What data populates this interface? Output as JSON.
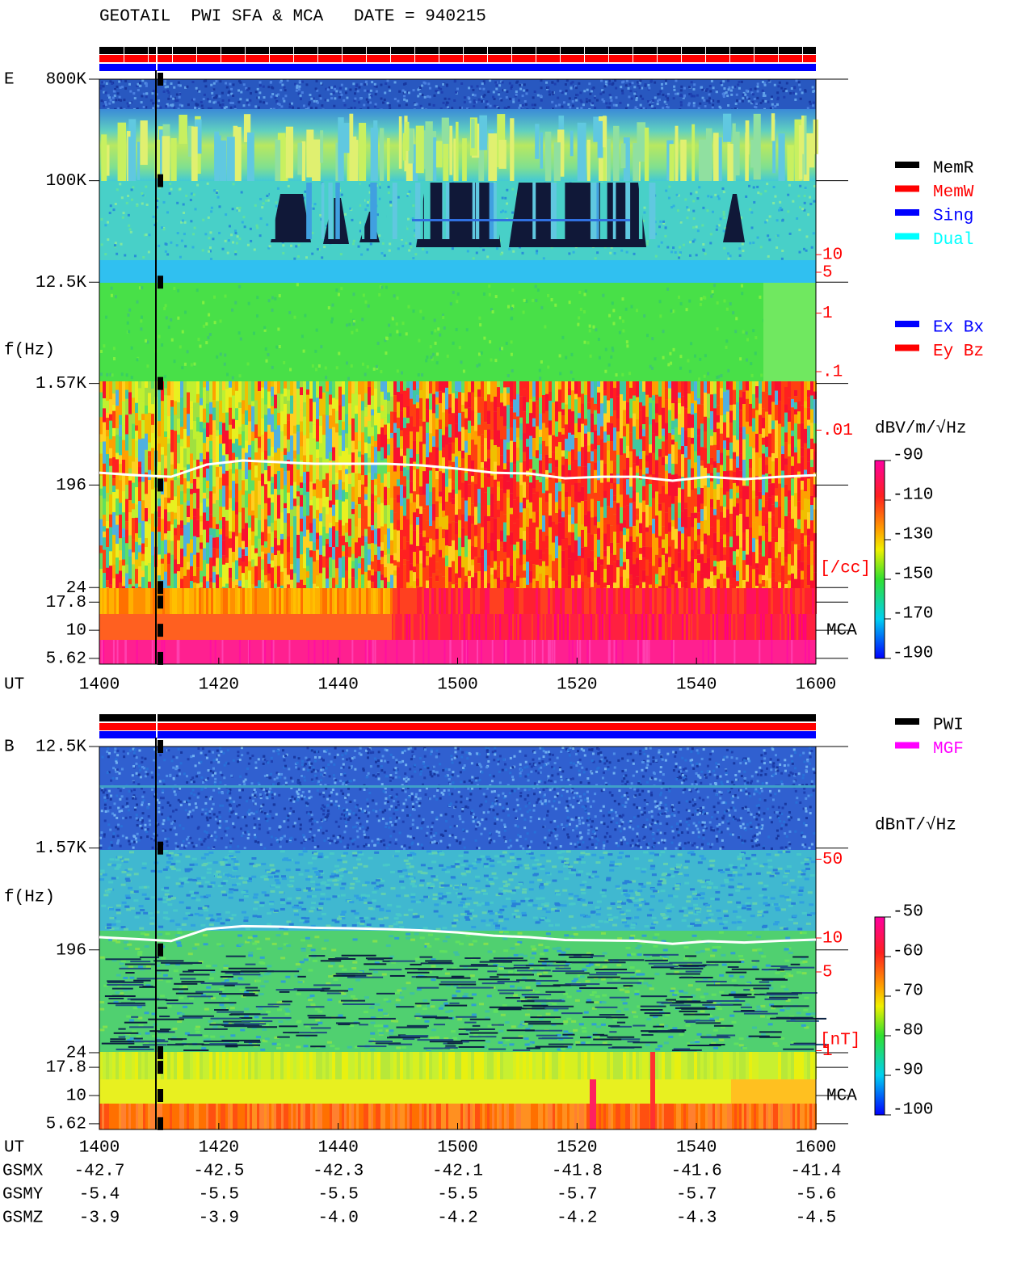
{
  "title": "GEOTAIL  PWI SFA & MCA   DATE = 940215",
  "chart_data": [
    {
      "type": "spectrogram",
      "panel_label": "E",
      "ylabel": "f(Hz)",
      "xlabel": "UT",
      "log_scale": true,
      "categories": [
        "1400",
        "1420",
        "1440",
        "1500",
        "1520",
        "1540",
        "1600"
      ],
      "ylim": [
        5,
        800000
      ],
      "yticks": [
        {
          "value": 800000,
          "label": "800K"
        },
        {
          "value": 100000,
          "label": "100K"
        },
        {
          "value": 12500,
          "label": "12.5K"
        },
        {
          "value": 1570,
          "label": "1.57K"
        },
        196,
        24,
        17.8,
        10,
        5.62
      ],
      "y2lim": [
        1e-06,
        10000
      ],
      "y2ticks": [
        10,
        5,
        1,
        {
          "value": 0.1,
          "label": ".1"
        },
        {
          "value": 0.01,
          "label": ".01"
        }
      ],
      "y2label": "[/cc]",
      "mca_label": "MCA",
      "colorbar": {
        "label": "dBV/m/√Hz",
        "lim": [
          -190,
          -90
        ],
        "ticks": [
          -90,
          -110,
          -130,
          -150,
          -170,
          -190
        ]
      },
      "legend": [
        {
          "name": "MemR",
          "color": "#000000"
        },
        {
          "name": "MemW",
          "color": "#ff0000"
        },
        {
          "name": "Sing",
          "color": "#0000ff"
        },
        {
          "name": "Dual",
          "color": "#00ffff"
        }
      ],
      "legend2": [
        {
          "name": "Ex Bx",
          "color": "#0000ff"
        },
        {
          "name": "Ey Bz",
          "color": "#ff0000"
        }
      ],
      "trace": [
        252,
        240,
        232,
        298,
        324,
        313,
        303,
        303,
        303,
        293,
        274,
        252,
        248,
        225,
        232,
        232,
        214,
        232,
        221,
        232,
        240
      ]
    },
    {
      "type": "spectrogram",
      "panel_label": "B",
      "ylabel": "f(Hz)",
      "xlabel": "UT",
      "log_scale": true,
      "categories": [
        "1400",
        "1420",
        "1440",
        "1500",
        "1520",
        "1540",
        "1600"
      ],
      "ylim": [
        5,
        12500
      ],
      "yticks": [
        {
          "value": 12500,
          "label": "12.5K"
        },
        {
          "value": 1570,
          "label": "1.57K"
        },
        196,
        24,
        17.8,
        10,
        5.62
      ],
      "y2lim": [
        0.2,
        500
      ],
      "y2ticks": [
        50,
        10,
        5,
        1
      ],
      "y2label": "[nT]",
      "mca_label": "MCA",
      "colorbar": {
        "label": "dBnT/√Hz",
        "lim": [
          -100,
          -50
        ],
        "ticks": [
          -50,
          -60,
          -70,
          -80,
          -90,
          -100
        ]
      },
      "legend": [
        {
          "name": "PWI",
          "color": "#000000"
        },
        {
          "name": "MGF",
          "color": "#ff00ff"
        }
      ],
      "trace": [
        254,
        245,
        235,
        300,
        318,
        315,
        308,
        305,
        300,
        292,
        280,
        262,
        254,
        240,
        238,
        236,
        222,
        234,
        228,
        236,
        242
      ]
    }
  ],
  "orbit": [
    {
      "label": "GSMX",
      "values": [
        "-42.7",
        "-42.5",
        "-42.3",
        "-42.1",
        "-41.8",
        "-41.6",
        "-41.4"
      ]
    },
    {
      "label": "GSMY",
      "values": [
        "-5.4",
        "-5.5",
        "-5.5",
        "-5.5",
        "-5.7",
        "-5.7",
        "-5.6"
      ]
    },
    {
      "label": "GSMZ",
      "values": [
        "-3.9",
        "-3.9",
        "-4.0",
        "-4.2",
        "-4.2",
        "-4.3",
        "-4.5"
      ]
    }
  ]
}
